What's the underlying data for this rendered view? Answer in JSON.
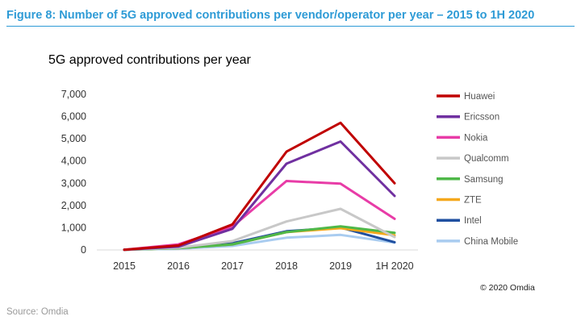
{
  "figure_title": "Figure 8: Number of 5G approved contributions per vendor/operator per year – 2015 to 1H 2020",
  "copyright": "© 2020 Omdia",
  "source": "Source: Omdia",
  "chart_data": {
    "type": "line",
    "title": "5G approved contributions per year",
    "xlabel": "",
    "ylabel": "",
    "categories": [
      "2015",
      "2016",
      "2017",
      "2018",
      "2019",
      "1H 2020"
    ],
    "ylim": [
      0,
      7000
    ],
    "yticks": [
      0,
      1000,
      2000,
      3000,
      4000,
      5000,
      6000,
      7000
    ],
    "ytick_labels": [
      "0",
      "1,000",
      "2,000",
      "3,000",
      "4,000",
      "5,000",
      "6,000",
      "7,000"
    ],
    "grid": false,
    "legend_position": "right",
    "series": [
      {
        "name": "Huawei",
        "color": "#c00000",
        "values": [
          10,
          200,
          1150,
          4420,
          5720,
          3000
        ]
      },
      {
        "name": "Ericsson",
        "color": "#7030a0",
        "values": [
          10,
          150,
          950,
          3880,
          4880,
          2430
        ]
      },
      {
        "name": "Nokia",
        "color": "#e83ca7",
        "values": [
          10,
          250,
          1050,
          3100,
          2980,
          1400
        ]
      },
      {
        "name": "Qualcomm",
        "color": "#c8c8c8",
        "values": [
          10,
          100,
          400,
          1280,
          1850,
          580
        ]
      },
      {
        "name": "Samsung",
        "color": "#4fb848",
        "values": [
          10,
          80,
          250,
          800,
          1060,
          770
        ]
      },
      {
        "name": "ZTE",
        "color": "#f5a81c",
        "values": [
          10,
          80,
          250,
          800,
          980,
          660
        ]
      },
      {
        "name": "Intel",
        "color": "#1f4fa0",
        "values": [
          10,
          90,
          300,
          840,
          1010,
          350
        ]
      },
      {
        "name": "China Mobile",
        "color": "#a9ccf0",
        "values": [
          10,
          50,
          180,
          550,
          680,
          330
        ]
      }
    ]
  }
}
